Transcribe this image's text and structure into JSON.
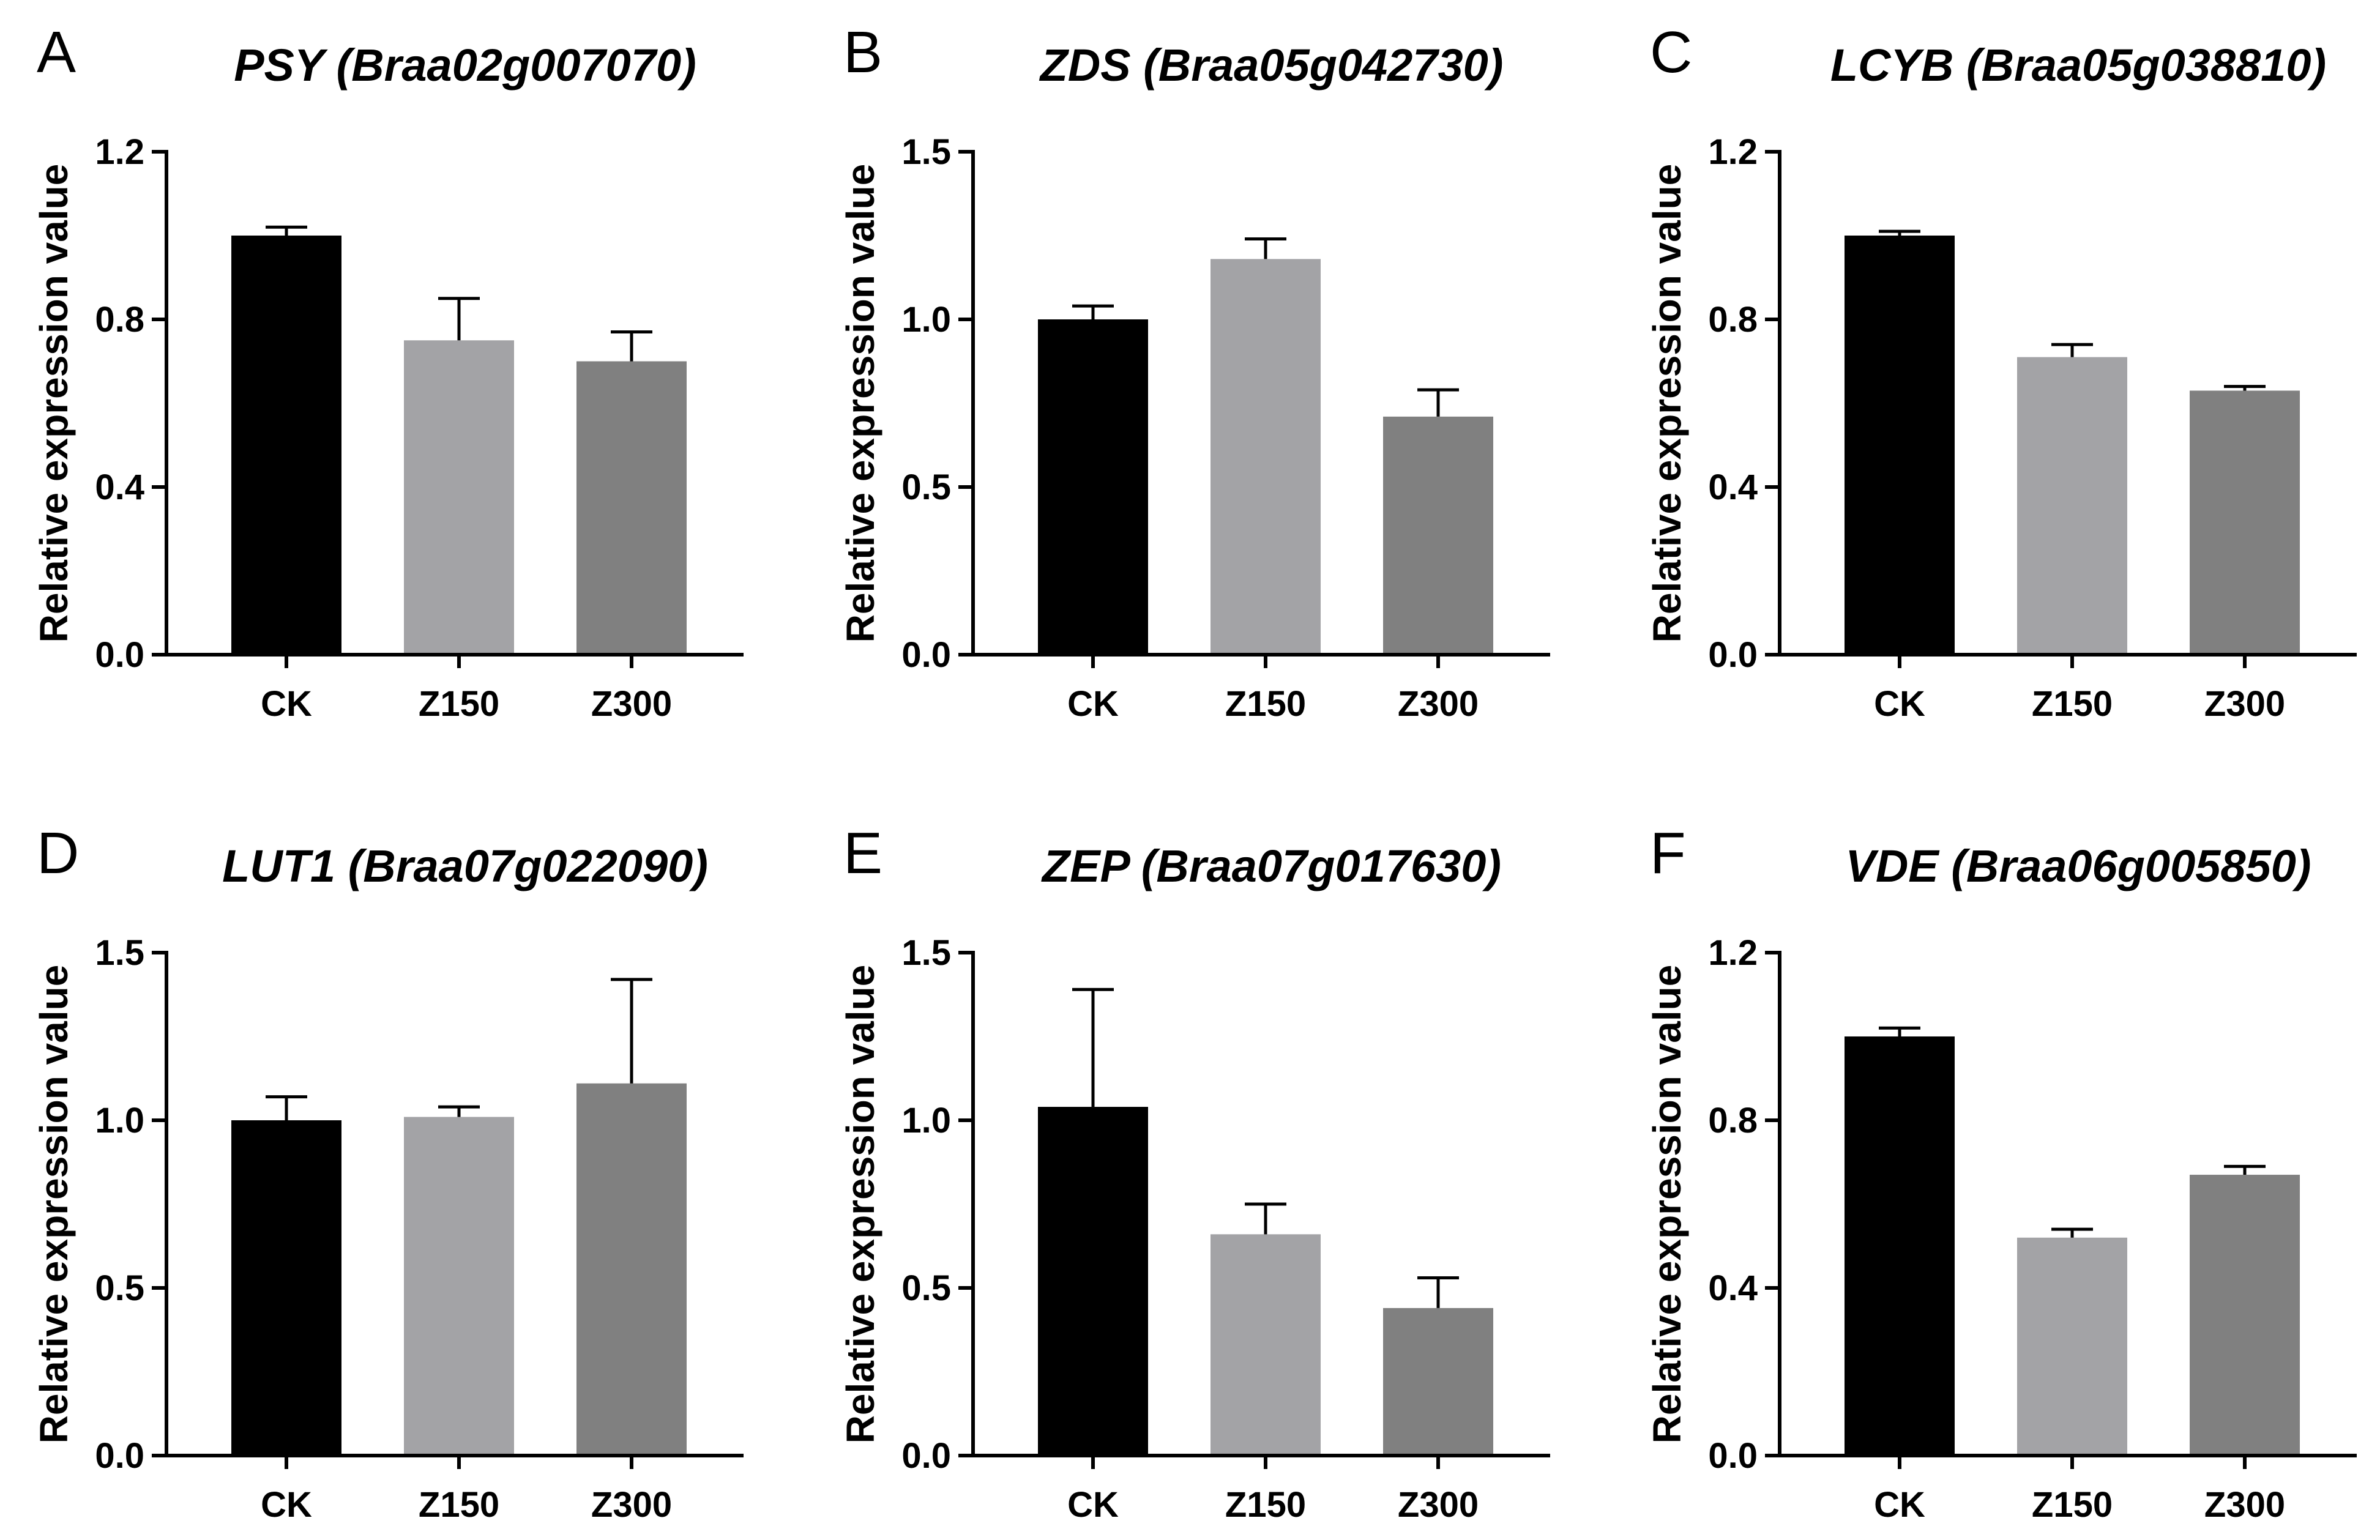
{
  "colors": {
    "CK": "#000000",
    "Z150": "#a3a3a6",
    "Z300": "#808080"
  },
  "chart_data": [
    {
      "type": "bar",
      "panel": "A",
      "title": "PSY (Braa02g007070)",
      "ylabel": "Relative expression value",
      "xlabel": "",
      "categories": [
        "CK",
        "Z150",
        "Z300"
      ],
      "values": [
        1.0,
        0.75,
        0.7
      ],
      "errors": [
        0.02,
        0.1,
        0.07
      ],
      "ylim": [
        0,
        1.2
      ],
      "yticks": [
        0.0,
        0.4,
        0.8,
        1.2
      ],
      "ytick_labels": [
        "0.0",
        "0.4",
        "0.8",
        "1.2"
      ]
    },
    {
      "type": "bar",
      "panel": "B",
      "title": "ZDS (Braa05g042730)",
      "ylabel": "Relative expression value",
      "xlabel": "",
      "categories": [
        "CK",
        "Z150",
        "Z300"
      ],
      "values": [
        1.0,
        1.18,
        0.71
      ],
      "errors": [
        0.04,
        0.06,
        0.08
      ],
      "ylim": [
        0,
        1.5
      ],
      "yticks": [
        0.0,
        0.5,
        1.0,
        1.5
      ],
      "ytick_labels": [
        "0.0",
        "0.5",
        "1.0",
        "1.5"
      ]
    },
    {
      "type": "bar",
      "panel": "C",
      "title": "LCYB (Braa05g038810)",
      "ylabel": "Relative expression value",
      "xlabel": "",
      "categories": [
        "CK",
        "Z150",
        "Z300"
      ],
      "values": [
        1.0,
        0.71,
        0.63
      ],
      "errors": [
        0.01,
        0.03,
        0.01
      ],
      "ylim": [
        0,
        1.2
      ],
      "yticks": [
        0.0,
        0.4,
        0.8,
        1.2
      ],
      "ytick_labels": [
        "0.0",
        "0.4",
        "0.8",
        "1.2"
      ]
    },
    {
      "type": "bar",
      "panel": "D",
      "title": "LUT1 (Braa07g022090)",
      "ylabel": "Relative expression value",
      "xlabel": "",
      "categories": [
        "CK",
        "Z150",
        "Z300"
      ],
      "values": [
        1.0,
        1.01,
        1.11
      ],
      "errors": [
        0.07,
        0.03,
        0.31
      ],
      "ylim": [
        0,
        1.5
      ],
      "yticks": [
        0.0,
        0.5,
        1.0,
        1.5
      ],
      "ytick_labels": [
        "0.0",
        "0.5",
        "1.0",
        "1.5"
      ]
    },
    {
      "type": "bar",
      "panel": "E",
      "title": "ZEP (Braa07g017630)",
      "ylabel": "Relative expression value",
      "xlabel": "",
      "categories": [
        "CK",
        "Z150",
        "Z300"
      ],
      "values": [
        1.04,
        0.66,
        0.44
      ],
      "errors": [
        0.35,
        0.09,
        0.09
      ],
      "ylim": [
        0,
        1.5
      ],
      "yticks": [
        0.0,
        0.5,
        1.0,
        1.5
      ],
      "ytick_labels": [
        "0.0",
        "0.5",
        "1.0",
        "1.5"
      ]
    },
    {
      "type": "bar",
      "panel": "F",
      "title": "VDE (Braa06g005850)",
      "ylabel": "Relative expression value",
      "xlabel": "",
      "categories": [
        "CK",
        "Z150",
        "Z300"
      ],
      "values": [
        1.0,
        0.52,
        0.67
      ],
      "errors": [
        0.02,
        0.02,
        0.02
      ],
      "ylim": [
        0,
        1.2
      ],
      "yticks": [
        0.0,
        0.4,
        0.8,
        1.2
      ],
      "ytick_labels": [
        "0.0",
        "0.4",
        "0.8",
        "1.2"
      ]
    }
  ]
}
